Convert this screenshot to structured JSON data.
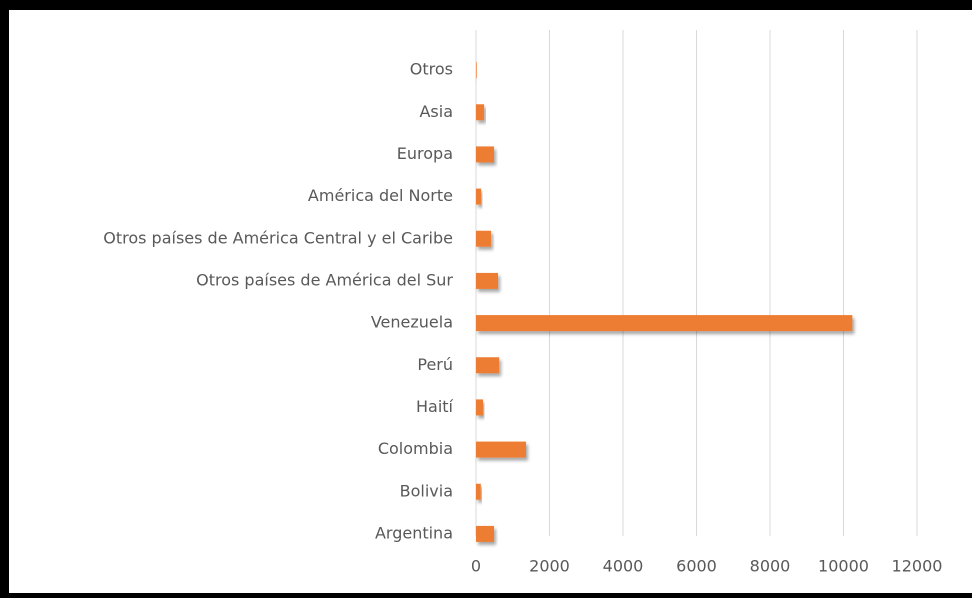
{
  "chart_data": {
    "type": "hbar",
    "categories": [
      "Otros",
      "Asia",
      "Europa",
      "América del Norte",
      "Otros países de América Central y el Caribe",
      "Otros países de América del Sur",
      "Venezuela",
      "Perú",
      "Haití",
      "Colombia",
      "Bolivia",
      "Argentina"
    ],
    "values": [
      20,
      220,
      490,
      140,
      410,
      600,
      10240,
      630,
      190,
      1360,
      130,
      490
    ],
    "color": "#ed7d31",
    "xlim": [
      0,
      12000
    ],
    "xticks": [
      0,
      2000,
      4000,
      6000,
      8000,
      10000,
      12000
    ],
    "grid": true
  }
}
